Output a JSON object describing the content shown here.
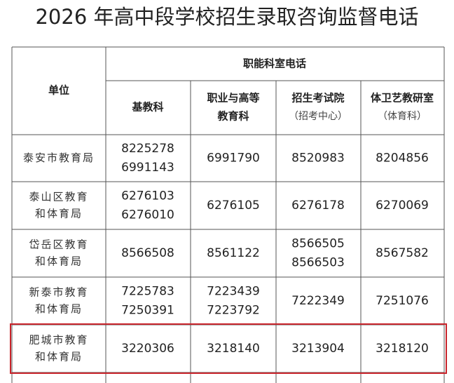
{
  "title": "2026 年高中段学校招生录取咨询监督电话",
  "table": {
    "header": {
      "unit": "单位",
      "group": "职能科室电话",
      "columns": [
        [
          "基教科"
        ],
        [
          "职业与高等",
          "教育科"
        ],
        [
          "招生考试院",
          "（招考中心）"
        ],
        [
          "体卫艺教研室",
          "（体育科）"
        ]
      ]
    },
    "rows": [
      [
        [
          "泰安市教育局"
        ],
        [
          "8225278",
          "6991143"
        ],
        [
          "6991790"
        ],
        [
          "8520983"
        ],
        [
          "8204856"
        ]
      ],
      [
        [
          "泰山区教育",
          "和体育局"
        ],
        [
          "6276103",
          "6276010"
        ],
        [
          "6276105"
        ],
        [
          "6276178"
        ],
        [
          "6270069"
        ]
      ],
      [
        [
          "岱岳区教育",
          "和体育局"
        ],
        [
          "8566508"
        ],
        [
          "8561122"
        ],
        [
          "8566505",
          "8566503"
        ],
        [
          "8567582"
        ]
      ],
      [
        [
          "新泰市教育",
          "和体育局"
        ],
        [
          "7225783",
          "7250391"
        ],
        [
          "7223439",
          "7223792"
        ],
        [
          "7222349"
        ],
        [
          "7251076"
        ]
      ],
      [
        [
          "肥城市教育",
          "和体育局"
        ],
        [
          "3220306"
        ],
        [
          "3218140"
        ],
        [
          "3213904"
        ],
        [
          "3218120"
        ]
      ]
    ]
  }
}
